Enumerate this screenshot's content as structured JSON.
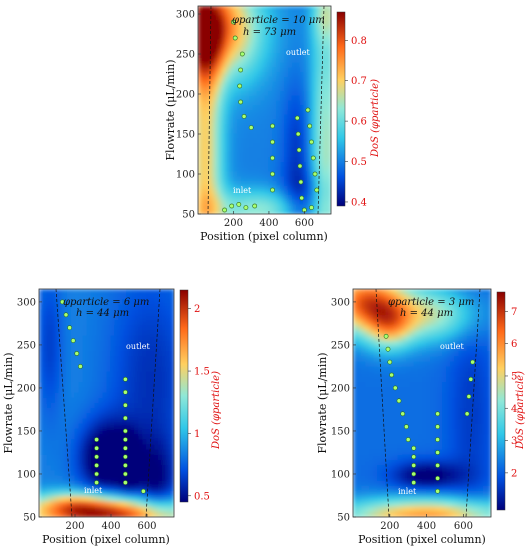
{
  "chart_data": [
    {
      "type": "heatmap",
      "id": "p10",
      "xlabel": "Position (pixel column)",
      "ylabel": "Flowrate (μL/min)",
      "xlim": [
        0,
        750
      ],
      "ylim": [
        50,
        310
      ],
      "xticks": [
        200,
        400,
        600
      ],
      "yticks": [
        50,
        100,
        150,
        200,
        250,
        300
      ],
      "colorbar": {
        "label": "DoS (φparticle)",
        "range": [
          0.39,
          0.87
        ],
        "ticks": [
          0.4,
          0.5,
          0.6,
          0.7,
          0.8
        ],
        "tick_labels": [
          "0.4",
          "0.5",
          "0.6",
          "0.7",
          "0.8"
        ]
      },
      "annotations": {
        "line1": "φparticle = 10 μm",
        "line2": "h = 73 μm",
        "inlet": "inlet",
        "outlet": "outlet"
      },
      "background": 0.5,
      "blobs": [
        {
          "x": 60,
          "y": 280,
          "sx": 180,
          "sy": 45,
          "v": 0.36
        },
        {
          "x": 40,
          "y": 120,
          "sx": 70,
          "sy": 130,
          "v": 0.2
        },
        {
          "x": 720,
          "y": 120,
          "sx": 60,
          "sy": 140,
          "v": 0.15
        },
        {
          "x": 380,
          "y": 55,
          "sx": 260,
          "sy": 18,
          "v": 0.14
        },
        {
          "x": 620,
          "y": 60,
          "sx": 120,
          "sy": 25,
          "v": -0.1
        },
        {
          "x": 560,
          "y": 130,
          "sx": 60,
          "sy": 60,
          "v": -0.06
        },
        {
          "x": 180,
          "y": 250,
          "sx": 50,
          "sy": 40,
          "v": -0.03
        },
        {
          "x": 720,
          "y": 300,
          "sx": 50,
          "sy": 25,
          "v": 0.1
        }
      ],
      "points": [
        {
          "x": 150,
          "y": 55
        },
        {
          "x": 190,
          "y": 60
        },
        {
          "x": 230,
          "y": 62
        },
        {
          "x": 270,
          "y": 58
        },
        {
          "x": 320,
          "y": 60
        },
        {
          "x": 250,
          "y": 250
        },
        {
          "x": 240,
          "y": 230
        },
        {
          "x": 235,
          "y": 210
        },
        {
          "x": 240,
          "y": 190
        },
        {
          "x": 260,
          "y": 172
        },
        {
          "x": 300,
          "y": 158
        },
        {
          "x": 200,
          "y": 290
        },
        {
          "x": 210,
          "y": 270
        },
        {
          "x": 420,
          "y": 160
        },
        {
          "x": 420,
          "y": 140
        },
        {
          "x": 420,
          "y": 120
        },
        {
          "x": 420,
          "y": 100
        },
        {
          "x": 420,
          "y": 80
        },
        {
          "x": 560,
          "y": 170
        },
        {
          "x": 565,
          "y": 150
        },
        {
          "x": 570,
          "y": 130
        },
        {
          "x": 575,
          "y": 110
        },
        {
          "x": 580,
          "y": 90
        },
        {
          "x": 585,
          "y": 70
        },
        {
          "x": 620,
          "y": 180
        },
        {
          "x": 630,
          "y": 160
        },
        {
          "x": 640,
          "y": 140
        },
        {
          "x": 650,
          "y": 120
        },
        {
          "x": 660,
          "y": 100
        },
        {
          "x": 670,
          "y": 80
        },
        {
          "x": 600,
          "y": 55
        },
        {
          "x": 640,
          "y": 58
        }
      ]
    },
    {
      "type": "heatmap",
      "id": "p6",
      "xlabel": "Position (pixel column)",
      "ylabel": "Flowrate (μL/min)",
      "xlim": [
        0,
        750
      ],
      "ylim": [
        50,
        315
      ],
      "xticks": [
        200,
        400,
        600
      ],
      "yticks": [
        50,
        100,
        150,
        200,
        250,
        300
      ],
      "colorbar": {
        "label": "DoS (φparticle)",
        "range": [
          0.45,
          2.15
        ],
        "ticks": [
          0.5,
          1,
          1.5,
          2
        ],
        "tick_labels": [
          "0.5",
          "1",
          "1.5",
          "2"
        ]
      },
      "annotations": {
        "line1": "φparticle = 6 μm",
        "line2": "h = 44 μm",
        "inlet": "inlet",
        "outlet": "outlet"
      },
      "background": 0.85,
      "blobs": [
        {
          "x": 390,
          "y": 52,
          "sx": 320,
          "sy": 14,
          "v": 1.2
        },
        {
          "x": 200,
          "y": 66,
          "sx": 160,
          "sy": 10,
          "v": 0.45
        },
        {
          "x": 380,
          "y": 118,
          "sx": 110,
          "sy": 30,
          "v": -0.55
        },
        {
          "x": 500,
          "y": 112,
          "sx": 40,
          "sy": 20,
          "v": -0.35
        },
        {
          "x": 620,
          "y": 210,
          "sx": 170,
          "sy": 90,
          "v": -0.25
        },
        {
          "x": 60,
          "y": 250,
          "sx": 50,
          "sy": 60,
          "v": -0.2
        },
        {
          "x": 650,
          "y": 90,
          "sx": 80,
          "sy": 35,
          "v": -0.3
        }
      ],
      "points": [
        {
          "x": 130,
          "y": 300
        },
        {
          "x": 150,
          "y": 285
        },
        {
          "x": 170,
          "y": 270
        },
        {
          "x": 190,
          "y": 255
        },
        {
          "x": 210,
          "y": 240
        },
        {
          "x": 230,
          "y": 225
        },
        {
          "x": 320,
          "y": 140
        },
        {
          "x": 320,
          "y": 130
        },
        {
          "x": 320,
          "y": 120
        },
        {
          "x": 320,
          "y": 110
        },
        {
          "x": 320,
          "y": 100
        },
        {
          "x": 320,
          "y": 90
        },
        {
          "x": 480,
          "y": 210
        },
        {
          "x": 480,
          "y": 195
        },
        {
          "x": 480,
          "y": 180
        },
        {
          "x": 480,
          "y": 165
        },
        {
          "x": 480,
          "y": 150
        },
        {
          "x": 480,
          "y": 140
        },
        {
          "x": 480,
          "y": 130
        },
        {
          "x": 480,
          "y": 120
        },
        {
          "x": 480,
          "y": 110
        },
        {
          "x": 480,
          "y": 100
        },
        {
          "x": 480,
          "y": 90
        },
        {
          "x": 580,
          "y": 80
        }
      ]
    },
    {
      "type": "heatmap",
      "id": "p3",
      "xlabel": "Position (pixel column)",
      "ylabel": "Flowrate (μL/min)",
      "xlim": [
        0,
        750
      ],
      "ylim": [
        50,
        315
      ],
      "xticks": [
        200,
        400,
        600
      ],
      "yticks": [
        50,
        100,
        150,
        200,
        250,
        300
      ],
      "colorbar": {
        "label": "DoS (φparticle)",
        "range": [
          0.85,
          7.6
        ],
        "ticks": [
          2,
          3,
          4,
          5,
          6,
          7
        ],
        "tick_labels": [
          "2",
          "3",
          "4",
          "5",
          "6",
          "7"
        ]
      },
      "annotations": {
        "line1": "φparticle = 3 μm",
        "line2": "h = 44 μm",
        "inlet": "inlet",
        "outlet": "outlet"
      },
      "background": 2.2,
      "blobs": [
        {
          "x": 70,
          "y": 300,
          "sx": 150,
          "sy": 25,
          "v": 4.2
        },
        {
          "x": 420,
          "y": 285,
          "sx": 180,
          "sy": 22,
          "v": 2.3
        },
        {
          "x": 200,
          "y": 270,
          "sx": 90,
          "sy": 20,
          "v": 2.0
        },
        {
          "x": 400,
          "y": 52,
          "sx": 330,
          "sy": 14,
          "v": 3.6
        },
        {
          "x": 400,
          "y": 98,
          "sx": 130,
          "sy": 12,
          "v": -1.5
        },
        {
          "x": 640,
          "y": 170,
          "sx": 90,
          "sy": 100,
          "v": -0.6
        }
      ],
      "points": [
        {
          "x": 180,
          "y": 260
        },
        {
          "x": 190,
          "y": 245
        },
        {
          "x": 200,
          "y": 230
        },
        {
          "x": 210,
          "y": 215
        },
        {
          "x": 230,
          "y": 200
        },
        {
          "x": 250,
          "y": 185
        },
        {
          "x": 270,
          "y": 170
        },
        {
          "x": 290,
          "y": 155
        },
        {
          "x": 300,
          "y": 140
        },
        {
          "x": 330,
          "y": 130
        },
        {
          "x": 330,
          "y": 120
        },
        {
          "x": 330,
          "y": 110
        },
        {
          "x": 330,
          "y": 100
        },
        {
          "x": 330,
          "y": 90
        },
        {
          "x": 460,
          "y": 170
        },
        {
          "x": 460,
          "y": 155
        },
        {
          "x": 460,
          "y": 140
        },
        {
          "x": 460,
          "y": 125
        },
        {
          "x": 460,
          "y": 110
        },
        {
          "x": 460,
          "y": 95
        },
        {
          "x": 460,
          "y": 80
        },
        {
          "x": 650,
          "y": 230
        },
        {
          "x": 640,
          "y": 210
        },
        {
          "x": 630,
          "y": 190
        },
        {
          "x": 620,
          "y": 170
        }
      ]
    }
  ]
}
